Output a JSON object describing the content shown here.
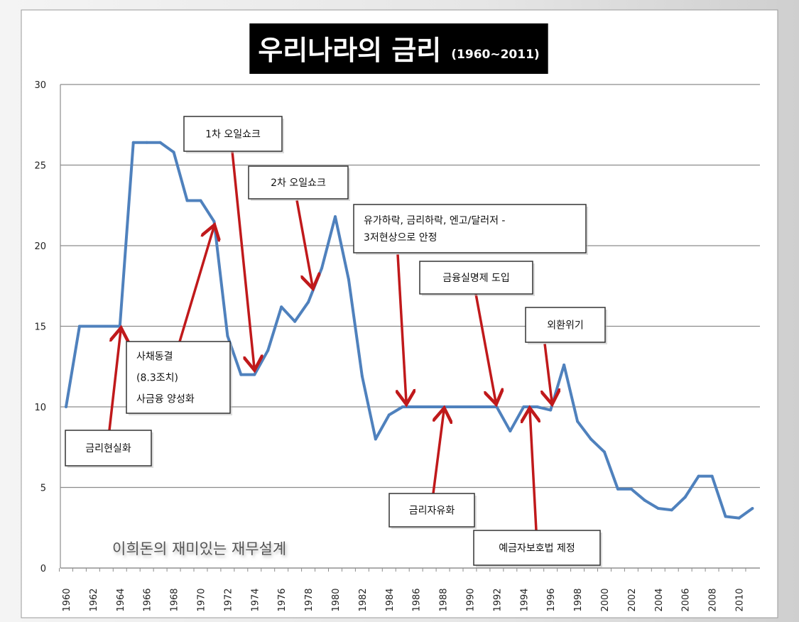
{
  "chart_data": {
    "type": "line",
    "title": "우리나라의 금리",
    "subtitle": "(1960~2011)",
    "xlabel": "",
    "ylabel": "",
    "ylim": [
      0,
      30
    ],
    "yticks": [
      "0",
      "5",
      "10",
      "15",
      "20",
      "25",
      "30"
    ],
    "xlim": [
      1960,
      2011
    ],
    "xticks": [
      "1960",
      "1962",
      "1964",
      "1966",
      "1968",
      "1970",
      "1972",
      "1974",
      "1976",
      "1978",
      "1980",
      "1982",
      "1984",
      "1986",
      "1988",
      "1990",
      "1992",
      "1994",
      "1996",
      "1998",
      "2000",
      "2002",
      "2004",
      "2006",
      "2008",
      "2010"
    ],
    "grid": "horizontal",
    "line_color": "#4f81bd",
    "arrow_color": "#c0191b",
    "x": [
      1960,
      1961,
      1962,
      1963,
      1964,
      1965,
      1966,
      1967,
      1968,
      1969,
      1970,
      1971,
      1972,
      1973,
      1974,
      1975,
      1976,
      1977,
      1978,
      1979,
      1980,
      1981,
      1982,
      1983,
      1984,
      1985,
      1986,
      1987,
      1988,
      1989,
      1990,
      1991,
      1992,
      1993,
      1994,
      1995,
      1996,
      1997,
      1998,
      1999,
      2000,
      2001,
      2002,
      2003,
      2004,
      2005,
      2006,
      2007,
      2008,
      2009,
      2010,
      2011
    ],
    "values": [
      10,
      15,
      15,
      15,
      15,
      26.4,
      26.4,
      26.4,
      25.8,
      22.8,
      22.8,
      21.5,
      14.4,
      12.0,
      12.0,
      13.5,
      16.2,
      15.3,
      16.5,
      18.6,
      21.8,
      17.9,
      11.9,
      8.0,
      9.5,
      10,
      10,
      10,
      10,
      10,
      10,
      10,
      10,
      8.5,
      10,
      10,
      9.8,
      12.6,
      9.1,
      8.0,
      7.2,
      4.9,
      4.9,
      4.2,
      3.7,
      3.6,
      4.4,
      5.7,
      5.7,
      3.2,
      3.1,
      3.7
    ],
    "annotations": [
      {
        "lines": [
          "금리현실화"
        ],
        "year": 1964
      },
      {
        "lines": [
          "사채동결",
          "(8.3조치)",
          "사금융 양성화"
        ],
        "year": 1971
      },
      {
        "lines": [
          "1차 오일쇼크"
        ],
        "year": 1974
      },
      {
        "lines": [
          "2차 오일쇼크"
        ],
        "year": 1978
      },
      {
        "lines": [
          "유가하락, 금리하락, 엔고/달러저 -",
          "3저현상으로 안정"
        ],
        "year": 1985
      },
      {
        "lines": [
          "금융실명제 도입"
        ],
        "year": 1992
      },
      {
        "lines": [
          "외환위기"
        ],
        "year": 1996
      },
      {
        "lines": [
          "금리자유화"
        ],
        "year": 1988
      },
      {
        "lines": [
          "예금자보호법 제정"
        ],
        "year": 1995
      }
    ],
    "watermark": "이희돈의 재미있는 재무설계"
  }
}
